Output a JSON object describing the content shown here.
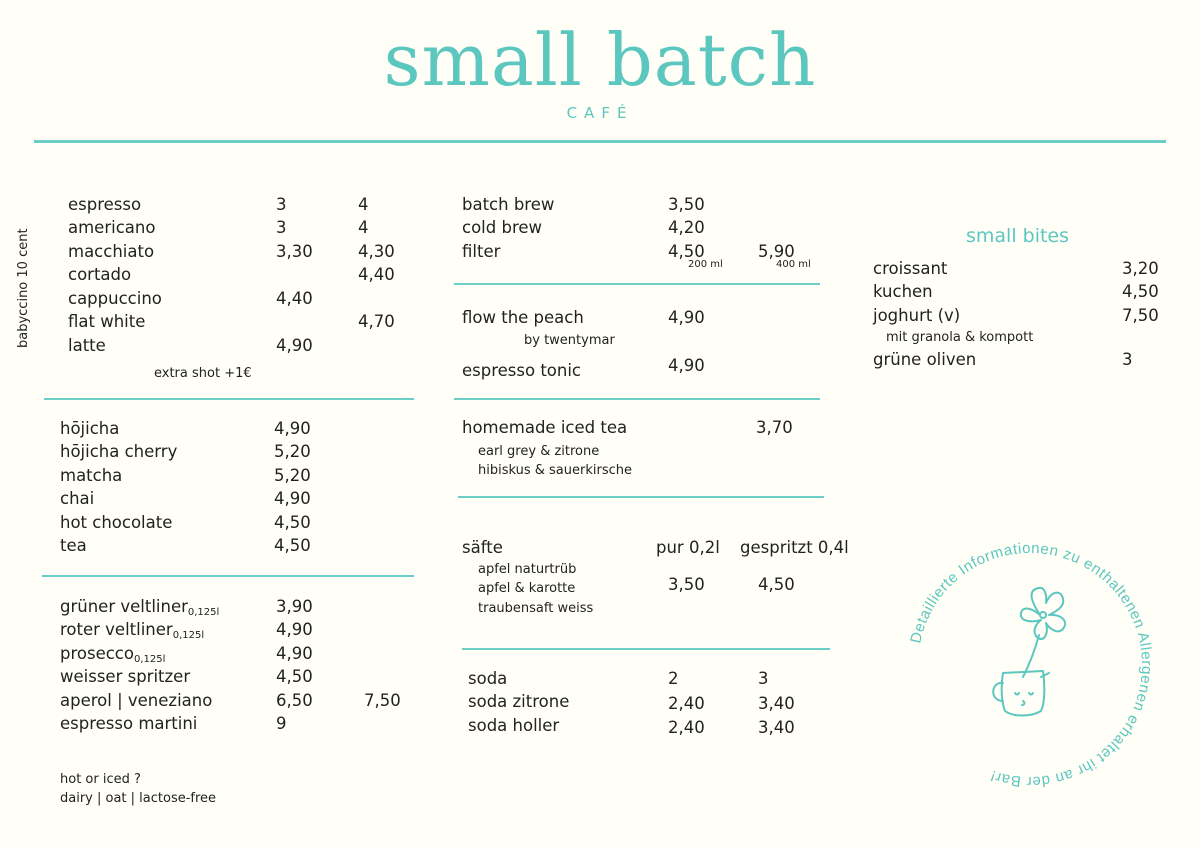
{
  "header": {
    "logo": "small batch",
    "subtitle": "CAFÉ"
  },
  "coffee": {
    "side_note": "babyccino 10 cent",
    "items": [
      {
        "name": "espresso",
        "p1": "3",
        "p2": "4"
      },
      {
        "name": "americano",
        "p1": "3",
        "p2": "4"
      },
      {
        "name": "macchiato",
        "p1": "3,30",
        "p2": "4,30"
      },
      {
        "name": "cortado",
        "p1": "",
        "p2": "4,40"
      },
      {
        "name": "cappuccino",
        "p1": "4,40",
        "p2": ""
      },
      {
        "name": "flat white",
        "p1": "",
        "p2": "4,70"
      },
      {
        "name": "latte",
        "p1": "4,90",
        "p2": ""
      }
    ],
    "extra": "extra shot +1€"
  },
  "tea": {
    "items": [
      {
        "name": "hōjicha",
        "price": "4,90"
      },
      {
        "name": "hōjicha cherry",
        "price": "5,20"
      },
      {
        "name": "matcha",
        "price": "5,20"
      },
      {
        "name": "chai",
        "price": "4,90"
      },
      {
        "name": "hot chocolate",
        "price": "4,50"
      },
      {
        "name": "tea",
        "price": "4,50"
      }
    ]
  },
  "drinks": {
    "items": [
      {
        "name": "grüner veltliner",
        "sub": "0,125l",
        "p1": "3,90",
        "p2": ""
      },
      {
        "name": "roter veltliner",
        "sub": "0,125l",
        "p1": "4,90",
        "p2": ""
      },
      {
        "name": "prosecco",
        "sub": "0,125l",
        "p1": "4,90",
        "p2": ""
      },
      {
        "name": "weisser spritzer",
        "sub": "",
        "p1": "4,50",
        "p2": ""
      },
      {
        "name": "aperol | veneziano",
        "sub": "",
        "p1": "6,50",
        "p2": "7,50"
      },
      {
        "name": "espresso martini",
        "sub": "",
        "p1": "9",
        "p2": ""
      }
    ]
  },
  "options": {
    "line1": "hot or iced ?",
    "line2": "dairy | oat | lactose-free"
  },
  "brew": {
    "items": [
      {
        "name": "batch brew",
        "p1": "3,50"
      },
      {
        "name": "cold brew",
        "p1": "4,20"
      },
      {
        "name": "filter",
        "p1": "4,50",
        "p2": "5,90"
      }
    ],
    "size1": "200 ml",
    "size2": "400 ml"
  },
  "specials": {
    "peach": {
      "name": "flow the peach",
      "price": "4,90",
      "by": "by twentymar"
    },
    "tonic": {
      "name": "espresso tonic",
      "price": "4,90"
    }
  },
  "icedtea": {
    "name": "homemade iced tea",
    "price": "3,70",
    "v1": "earl grey & zitrone",
    "v2": "hibiskus & sauerkirsche"
  },
  "juice": {
    "name": "säfte",
    "col1": "pur 0,2l",
    "col2": "gespritzt 0,4l",
    "v1": "apfel naturtrüb",
    "v2": "apfel & karotte",
    "v3": "traubensaft weiss",
    "p1": "3,50",
    "p2": "4,50"
  },
  "soda": {
    "items": [
      {
        "name": "soda",
        "p1": "2",
        "p2": "3"
      },
      {
        "name": "soda zitrone",
        "p1": "2,40",
        "p2": "3,40"
      },
      {
        "name": "soda holler",
        "p1": "2,40",
        "p2": "3,40"
      }
    ]
  },
  "bites": {
    "title": "small bites",
    "items": [
      {
        "name": "croissant",
        "price": "3,20"
      },
      {
        "name": "kuchen",
        "price": "4,50"
      },
      {
        "name": "joghurt (v)",
        "price": "7,50"
      },
      {
        "name": "grüne oliven",
        "price": "3"
      }
    ],
    "joghurt_note": "mit granola & kompott"
  },
  "allergen": {
    "text": "Detaillierte Informationen zu enthaltenen Allergenen erhaltet ihr an der Bar!"
  },
  "colors": {
    "accent": "#5cc7bf",
    "background": "#fffef7",
    "text": "#222222"
  }
}
